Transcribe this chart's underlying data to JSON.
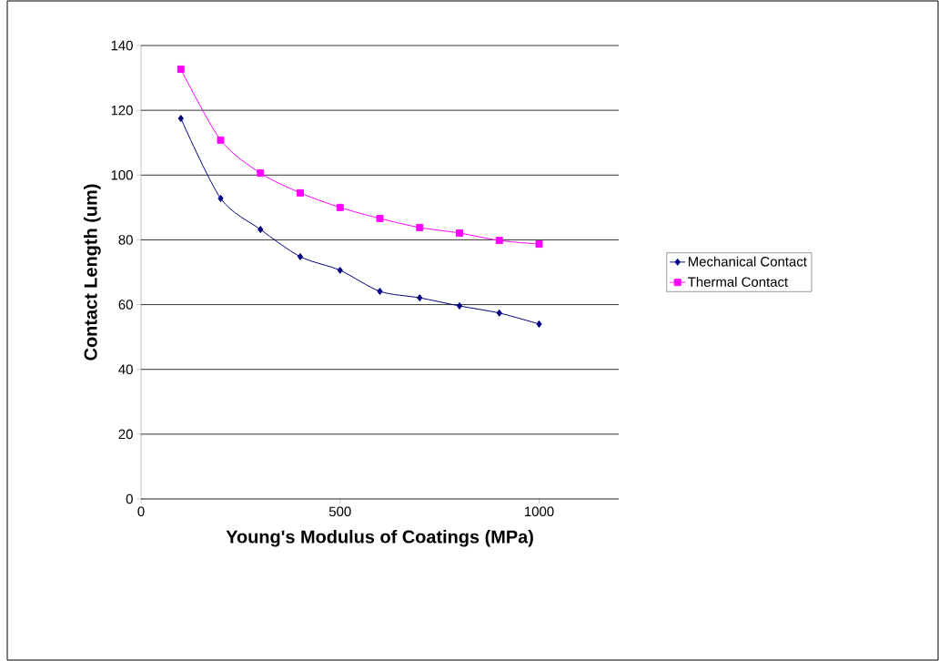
{
  "chart_data": {
    "type": "line",
    "xlabel": "Young's Modulus of Coatings (MPa)",
    "ylabel": "Contact Length (um)",
    "x": [
      100,
      200,
      300,
      400,
      500,
      600,
      700,
      800,
      900,
      1000
    ],
    "series": [
      {
        "name": "Mechanical Contact",
        "color": "#000080",
        "marker": "diamond",
        "values": [
          117.5,
          92.8,
          83.2,
          74.8,
          70.6,
          64.1,
          62.1,
          59.6,
          57.4,
          54
        ]
      },
      {
        "name": "Thermal Contact",
        "color": "#ff00ff",
        "marker": "square",
        "values": [
          132.7,
          110.8,
          100.6,
          94.5,
          90,
          86.6,
          83.8,
          82.1,
          79.8,
          78.7
        ]
      }
    ],
    "xlim": [
      0,
      1200
    ],
    "ylim": [
      0,
      140
    ],
    "xticks": [
      0,
      500,
      1000
    ],
    "yticks": [
      0,
      20,
      40,
      60,
      80,
      100,
      120,
      140
    ],
    "grid": "y",
    "legend": "right",
    "line_style": "solid"
  }
}
